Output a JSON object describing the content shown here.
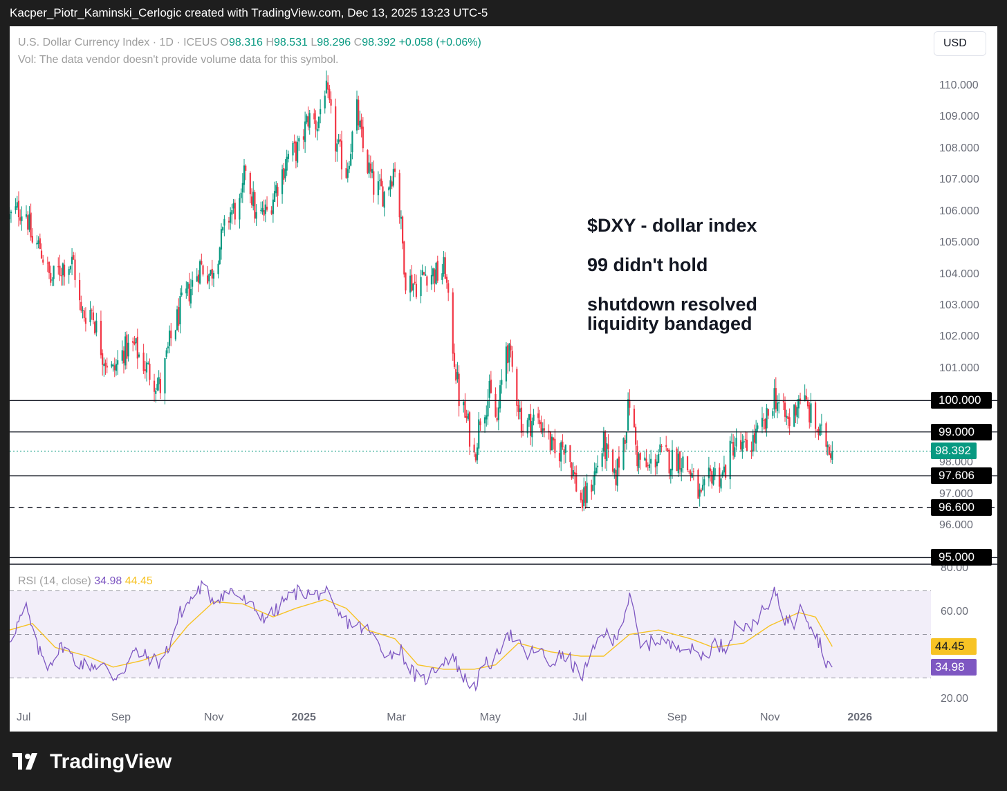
{
  "header": {
    "text": "Kacper_Piotr_Kaminski_Cerlogic created with TradingView.com, Dec 13, 2025 13:23 UTC-5"
  },
  "legend": {
    "symbol": "U.S. Dollar Currency Index · 1D · ICEUS",
    "o_label": "O",
    "open": "98.316",
    "h_label": "H",
    "high": "98.531",
    "l_label": "L",
    "low": "98.296",
    "c_label": "C",
    "close": "98.392",
    "change": "+0.058 (+0.06%)",
    "vol_text": "Vol: The data vendor doesn't provide volume data for this symbol."
  },
  "currency_button": {
    "label": "USD"
  },
  "annotations": {
    "line1": "$DXY - dollar index",
    "line2": "99 didn't hold",
    "line3": "shutdown resolved",
    "line4": "liquidity bandaged"
  },
  "rsi_legend": {
    "label": "RSI (14, close)",
    "rsi_value": "34.98",
    "ma_value": "44.45"
  },
  "footer": {
    "brand": "TradingView"
  },
  "colors": {
    "up": "#089981",
    "down": "#f23645",
    "rsi_line": "#7e57c2",
    "rsi_ma": "#f7c325",
    "rsi_band": "#ede7f6",
    "current_price_tag": "#089981",
    "rsi_tag": "#7e57c2",
    "ma_tag": "#f7c325"
  },
  "chart_data": {
    "type": "candlestick",
    "title": "U.S. Dollar Currency Index · 1D · ICEUS",
    "price_axis": {
      "min": 94.8,
      "max": 110.5,
      "ticks": [
        "110.000",
        "109.000",
        "108.000",
        "107.000",
        "106.000",
        "105.000",
        "104.000",
        "103.000",
        "102.000",
        "101.000",
        "98.000",
        "97.000",
        "96.000"
      ],
      "tick_values": [
        110,
        109,
        108,
        107,
        106,
        105,
        104,
        103,
        102,
        101,
        98,
        97,
        96
      ]
    },
    "time_axis": {
      "labels": [
        "Jul",
        "Sep",
        "Nov",
        "2025",
        "Mar",
        "May",
        "Jul",
        "Sep",
        "Nov",
        "2026"
      ],
      "bold": [
        "2025",
        "2026"
      ],
      "dates": [
        "2024-07-01",
        "2024-09-01",
        "2024-11-01",
        "2025-01-01",
        "2025-03-01",
        "2025-05-01",
        "2025-07-01",
        "2025-09-01",
        "2025-11-01",
        "2026-01-01"
      ],
      "data_start": "2024-06-20",
      "data_end": "2025-12-12"
    },
    "horizontal_lines": [
      {
        "price": 100.0,
        "label": "100.000",
        "style": "solid"
      },
      {
        "price": 99.0,
        "label": "99.000",
        "style": "solid"
      },
      {
        "price": 97.606,
        "label": "97.606",
        "style": "solid"
      },
      {
        "price": 96.6,
        "label": "96.600",
        "style": "dashed"
      },
      {
        "price": 95.0,
        "label": "95.000",
        "style": "solid"
      }
    ],
    "current_price": {
      "price": 98.392,
      "label": "98.392"
    },
    "close_path": [
      [
        "2024-06-20",
        105.8
      ],
      [
        "2024-06-26",
        106.1
      ],
      [
        "2024-07-01",
        106.0
      ],
      [
        "2024-07-05",
        105.0
      ],
      [
        "2024-07-10",
        104.9
      ],
      [
        "2024-07-17",
        103.8
      ],
      [
        "2024-07-25",
        104.3
      ],
      [
        "2024-08-01",
        104.4
      ],
      [
        "2024-08-06",
        102.7
      ],
      [
        "2024-08-13",
        102.9
      ],
      [
        "2024-08-20",
        101.5
      ],
      [
        "2024-08-27",
        100.9
      ],
      [
        "2024-09-03",
        101.6
      ],
      [
        "2024-09-10",
        101.7
      ],
      [
        "2024-09-17",
        101.1
      ],
      [
        "2024-09-24",
        100.6
      ],
      [
        "2024-09-27",
        100.4
      ],
      [
        "2024-10-03",
        101.8
      ],
      [
        "2024-10-10",
        102.9
      ],
      [
        "2024-10-17",
        103.6
      ],
      [
        "2024-10-23",
        104.3
      ],
      [
        "2024-10-30",
        104.0
      ],
      [
        "2024-11-06",
        105.1
      ],
      [
        "2024-11-12",
        106.0
      ],
      [
        "2024-11-19",
        106.2
      ],
      [
        "2024-11-22",
        107.5
      ],
      [
        "2024-11-29",
        105.8
      ],
      [
        "2024-12-06",
        106.0
      ],
      [
        "2024-12-13",
        106.9
      ],
      [
        "2024-12-20",
        107.8
      ],
      [
        "2024-12-27",
        108.0
      ],
      [
        "2025-01-02",
        109.0
      ],
      [
        "2025-01-08",
        108.8
      ],
      [
        "2025-01-13",
        110.0
      ],
      [
        "2025-01-20",
        108.2
      ],
      [
        "2025-01-27",
        107.3
      ],
      [
        "2025-02-03",
        109.2
      ],
      [
        "2025-02-07",
        108.0
      ],
      [
        "2025-02-14",
        106.8
      ],
      [
        "2025-02-21",
        106.6
      ],
      [
        "2025-02-28",
        107.5
      ],
      [
        "2025-03-04",
        105.5
      ],
      [
        "2025-03-07",
        103.9
      ],
      [
        "2025-03-14",
        103.7
      ],
      [
        "2025-03-21",
        104.1
      ],
      [
        "2025-03-28",
        104.0
      ],
      [
        "2025-04-02",
        104.2
      ],
      [
        "2025-04-04",
        103.0
      ],
      [
        "2025-04-11",
        100.1
      ],
      [
        "2025-04-17",
        99.2
      ],
      [
        "2025-04-21",
        98.2
      ],
      [
        "2025-04-25",
        99.5
      ],
      [
        "2025-05-01",
        100.2
      ],
      [
        "2025-05-06",
        99.3
      ],
      [
        "2025-05-12",
        101.8
      ],
      [
        "2025-05-16",
        101.0
      ],
      [
        "2025-05-23",
        99.1
      ],
      [
        "2025-05-30",
        99.4
      ],
      [
        "2025-06-06",
        99.2
      ],
      [
        "2025-06-13",
        98.2
      ],
      [
        "2025-06-20",
        98.7
      ],
      [
        "2025-06-27",
        97.3
      ],
      [
        "2025-07-01",
        96.7
      ],
      [
        "2025-07-08",
        97.5
      ],
      [
        "2025-07-15",
        98.6
      ],
      [
        "2025-07-22",
        97.4
      ],
      [
        "2025-07-29",
        99.0
      ],
      [
        "2025-08-01",
        100.0
      ],
      [
        "2025-08-06",
        98.2
      ],
      [
        "2025-08-13",
        97.8
      ],
      [
        "2025-08-20",
        98.3
      ],
      [
        "2025-08-27",
        98.1
      ],
      [
        "2025-09-03",
        98.2
      ],
      [
        "2025-09-10",
        97.7
      ],
      [
        "2025-09-17",
        96.8
      ],
      [
        "2025-09-24",
        97.7
      ],
      [
        "2025-10-01",
        97.6
      ],
      [
        "2025-10-08",
        98.6
      ],
      [
        "2025-10-15",
        98.4
      ],
      [
        "2025-10-22",
        98.8
      ],
      [
        "2025-10-29",
        99.2
      ],
      [
        "2025-11-04",
        100.2
      ],
      [
        "2025-11-10",
        99.5
      ],
      [
        "2025-11-14",
        99.3
      ],
      [
        "2025-11-21",
        100.2
      ],
      [
        "2025-11-28",
        99.5
      ],
      [
        "2025-12-04",
        98.9
      ],
      [
        "2025-12-10",
        98.6
      ],
      [
        "2025-12-12",
        98.392
      ]
    ],
    "rsi": {
      "axis": {
        "min": 15,
        "max": 80,
        "ticks": [
          "80.00",
          "60.00",
          "20.00"
        ],
        "tick_values": [
          80,
          60,
          20
        ]
      },
      "band": [
        30,
        70
      ],
      "midline": 50,
      "path": [
        [
          "2024-06-20",
          48
        ],
        [
          "2024-07-01",
          62
        ],
        [
          "2024-07-08",
          44
        ],
        [
          "2024-07-15",
          36
        ],
        [
          "2024-07-25",
          45
        ],
        [
          "2024-08-02",
          38
        ],
        [
          "2024-08-09",
          36
        ],
        [
          "2024-08-20",
          36
        ],
        [
          "2024-08-27",
          30
        ],
        [
          "2024-09-03",
          34
        ],
        [
          "2024-09-10",
          42
        ],
        [
          "2024-09-17",
          40
        ],
        [
          "2024-09-27",
          37
        ],
        [
          "2024-10-03",
          45
        ],
        [
          "2024-10-10",
          60
        ],
        [
          "2024-10-17",
          66
        ],
        [
          "2024-10-24",
          72
        ],
        [
          "2024-11-01",
          66
        ],
        [
          "2024-11-06",
          68
        ],
        [
          "2024-11-13",
          70
        ],
        [
          "2024-11-20",
          66
        ],
        [
          "2024-11-27",
          62
        ],
        [
          "2024-12-04",
          58
        ],
        [
          "2024-12-11",
          60
        ],
        [
          "2024-12-18",
          66
        ],
        [
          "2024-12-27",
          70
        ],
        [
          "2025-01-06",
          68
        ],
        [
          "2025-01-13",
          70
        ],
        [
          "2025-01-20",
          60
        ],
        [
          "2025-01-27",
          56
        ],
        [
          "2025-02-03",
          54
        ],
        [
          "2025-02-10",
          52
        ],
        [
          "2025-02-17",
          46
        ],
        [
          "2025-02-24",
          40
        ],
        [
          "2025-03-03",
          44
        ],
        [
          "2025-03-10",
          34
        ],
        [
          "2025-03-17",
          28
        ],
        [
          "2025-03-24",
          32
        ],
        [
          "2025-03-31",
          38
        ],
        [
          "2025-04-07",
          40
        ],
        [
          "2025-04-14",
          30
        ],
        [
          "2025-04-21",
          26
        ],
        [
          "2025-04-28",
          36
        ],
        [
          "2025-05-05",
          38
        ],
        [
          "2025-05-12",
          52
        ],
        [
          "2025-05-19",
          46
        ],
        [
          "2025-05-26",
          40
        ],
        [
          "2025-06-02",
          44
        ],
        [
          "2025-06-09",
          36
        ],
        [
          "2025-06-16",
          40
        ],
        [
          "2025-06-23",
          38
        ],
        [
          "2025-06-30",
          30
        ],
        [
          "2025-07-07",
          40
        ],
        [
          "2025-07-14",
          52
        ],
        [
          "2025-07-21",
          46
        ],
        [
          "2025-07-28",
          58
        ],
        [
          "2025-08-01",
          68
        ],
        [
          "2025-08-08",
          44
        ],
        [
          "2025-08-15",
          46
        ],
        [
          "2025-08-22",
          48
        ],
        [
          "2025-08-29",
          44
        ],
        [
          "2025-09-05",
          46
        ],
        [
          "2025-09-12",
          42
        ],
        [
          "2025-09-19",
          40
        ],
        [
          "2025-09-26",
          46
        ],
        [
          "2025-10-03",
          44
        ],
        [
          "2025-10-10",
          56
        ],
        [
          "2025-10-17",
          52
        ],
        [
          "2025-10-24",
          58
        ],
        [
          "2025-10-31",
          62
        ],
        [
          "2025-11-05",
          70
        ],
        [
          "2025-11-10",
          58
        ],
        [
          "2025-11-17",
          54
        ],
        [
          "2025-11-21",
          66
        ],
        [
          "2025-11-28",
          54
        ],
        [
          "2025-12-04",
          46
        ],
        [
          "2025-12-08",
          38
        ],
        [
          "2025-12-12",
          34.98
        ]
      ],
      "ma_path": [
        [
          "2024-06-20",
          52
        ],
        [
          "2024-07-05",
          55
        ],
        [
          "2024-07-20",
          44
        ],
        [
          "2024-08-10",
          40
        ],
        [
          "2024-08-27",
          35
        ],
        [
          "2024-09-15",
          38
        ],
        [
          "2024-10-01",
          42
        ],
        [
          "2024-10-15",
          54
        ],
        [
          "2024-11-01",
          65
        ],
        [
          "2024-11-20",
          64
        ],
        [
          "2024-12-10",
          58
        ],
        [
          "2024-12-25",
          62
        ],
        [
          "2025-01-13",
          66
        ],
        [
          "2025-01-27",
          62
        ],
        [
          "2025-02-10",
          52
        ],
        [
          "2025-02-28",
          48
        ],
        [
          "2025-03-15",
          36
        ],
        [
          "2025-04-01",
          34
        ],
        [
          "2025-04-21",
          34
        ],
        [
          "2025-05-05",
          36
        ],
        [
          "2025-05-20",
          46
        ],
        [
          "2025-06-10",
          42
        ],
        [
          "2025-06-30",
          40
        ],
        [
          "2025-07-15",
          40
        ],
        [
          "2025-08-01",
          50
        ],
        [
          "2025-08-20",
          52
        ],
        [
          "2025-09-10",
          48
        ],
        [
          "2025-09-25",
          44
        ],
        [
          "2025-10-15",
          46
        ],
        [
          "2025-11-01",
          54
        ],
        [
          "2025-11-20",
          60
        ],
        [
          "2025-12-01",
          58
        ],
        [
          "2025-12-12",
          44.45
        ]
      ]
    }
  }
}
